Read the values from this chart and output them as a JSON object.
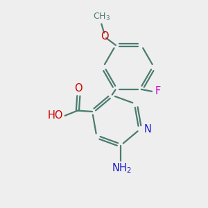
{
  "bg_color": "#eeeeee",
  "bond_color": "#4a7c6f",
  "bond_width": 1.6,
  "atom_colors": {
    "N": "#1a1acc",
    "O": "#cc0000",
    "F": "#cc00cc",
    "C": "#4a7c6f"
  },
  "font_size": 10.5,
  "font_size_sub": 9.0,
  "doffset": 0.055
}
